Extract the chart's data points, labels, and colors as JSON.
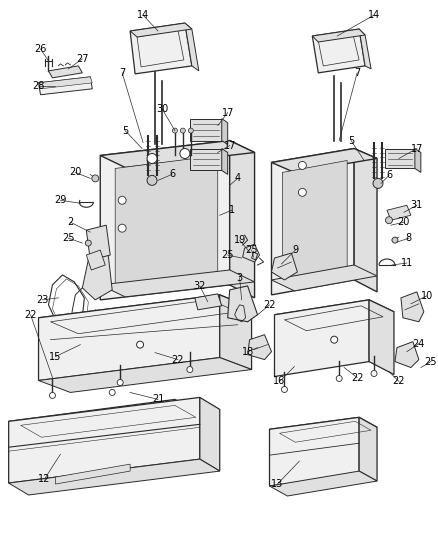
{
  "bg_color": "#ffffff",
  "line_color": "#2a2a2a",
  "fill_light": "#f0f0f0",
  "fill_mid": "#e0e0e0",
  "fill_dark": "#cccccc",
  "label_fontsize": 7.0,
  "fig_width": 4.38,
  "fig_height": 5.33,
  "dpi": 100
}
